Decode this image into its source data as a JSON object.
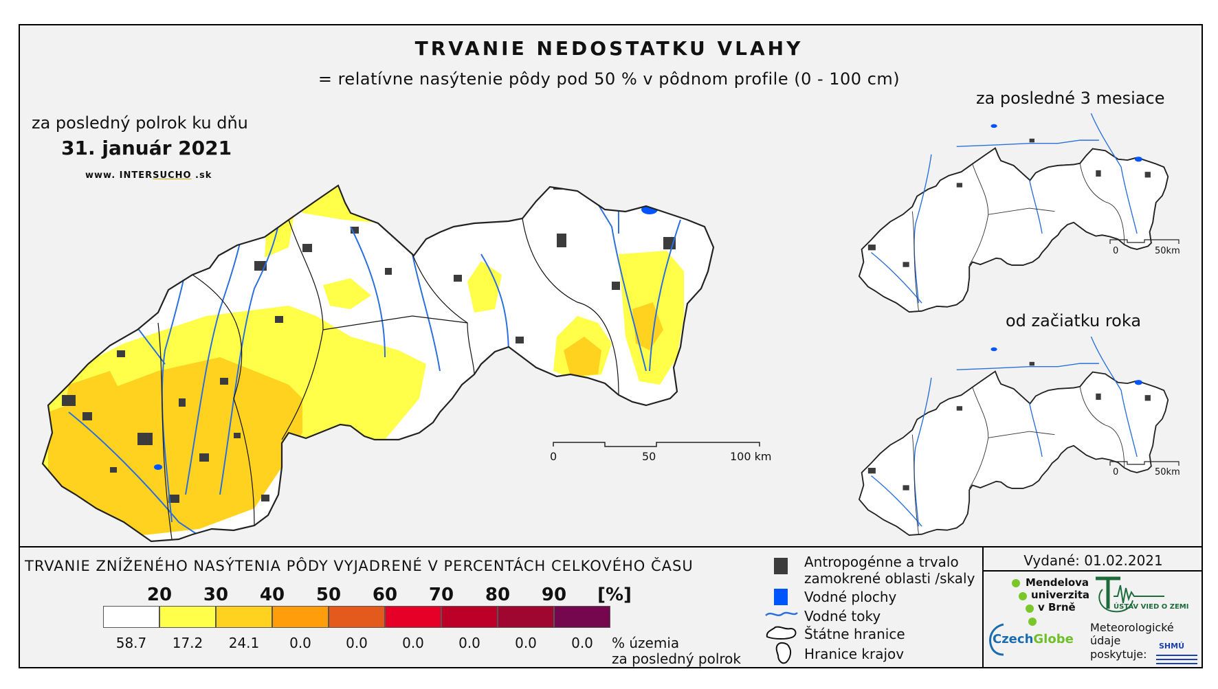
{
  "header": {
    "title": "TRVANIE NEDOSTATKU VLAHY",
    "subtitle": "= relatívne nasýtenie pôdy pod 50 % v pôdnom profile (0 - 100 cm)"
  },
  "main_map": {
    "period_label": "za posledný polrok ku dňu",
    "date": "31. január 2021",
    "website_prefix": "www. INTER",
    "website_highlight": "SUCHO",
    "website_suffix": " .sk",
    "scalebar": {
      "ticks": [
        "0",
        "50",
        "100 km"
      ],
      "max_km": 100
    }
  },
  "inset_3_months": {
    "label": "za posledné 3 mesiace",
    "scalebar": {
      "ticks": [
        "0",
        "50km"
      ],
      "max_km": 50
    }
  },
  "inset_year": {
    "label": "od začiatku roka",
    "scalebar": {
      "ticks": [
        "0",
        "50km"
      ],
      "max_km": 50
    }
  },
  "legend": {
    "title": "TRVANIE ZNÍŽENÉHO NASÝTENIA PÔDY VYJADRENÉ V PERCENTÁCH CELKOVÉHO ČASU",
    "thresholds": [
      "20",
      "30",
      "40",
      "50",
      "60",
      "70",
      "80",
      "90",
      "[%]"
    ],
    "classes": [
      {
        "color": "#ffffff",
        "share": "58.7"
      },
      {
        "color": "#ffff4a",
        "share": "17.2"
      },
      {
        "color": "#ffd21f",
        "share": "24.1"
      },
      {
        "color": "#ff9d0b",
        "share": "0.0"
      },
      {
        "color": "#e35a1c",
        "share": "0.0"
      },
      {
        "color": "#e60028",
        "share": "0.0"
      },
      {
        "color": "#bd0027",
        "share": "0.0"
      },
      {
        "color": "#a00730",
        "share": "0.0"
      },
      {
        "color": "#74074e",
        "share": "0.0"
      }
    ],
    "share_label_1": "% územia",
    "share_label_2": "za posledný polrok",
    "symbols": {
      "urban_1": "Antropogénne a trvalo",
      "urban_2": "zamokrené oblasti /skaly",
      "water_bodies": "Vodné plochy",
      "rivers": "Vodné toky",
      "state_border": "Štátne hranice",
      "region_border": "Hranice krajov"
    },
    "colors": {
      "urban": "#3c3c3c",
      "water": "#0055ff",
      "river": "#2a6fdc"
    }
  },
  "credits": {
    "issued": "Vydané: 01.02.2021",
    "mendel_1": "Mendelova",
    "mendel_2": "univerzita",
    "mendel_3": "v Brně",
    "uvz": "ÚSTAV VIED O ZEMI",
    "czechglobe_a": "Czech",
    "czechglobe_b": "Globe",
    "meteo_1": "Meteorologické",
    "meteo_2": "údaje",
    "meteo_3": "poskytuje:",
    "shmu": "SHMÚ"
  }
}
